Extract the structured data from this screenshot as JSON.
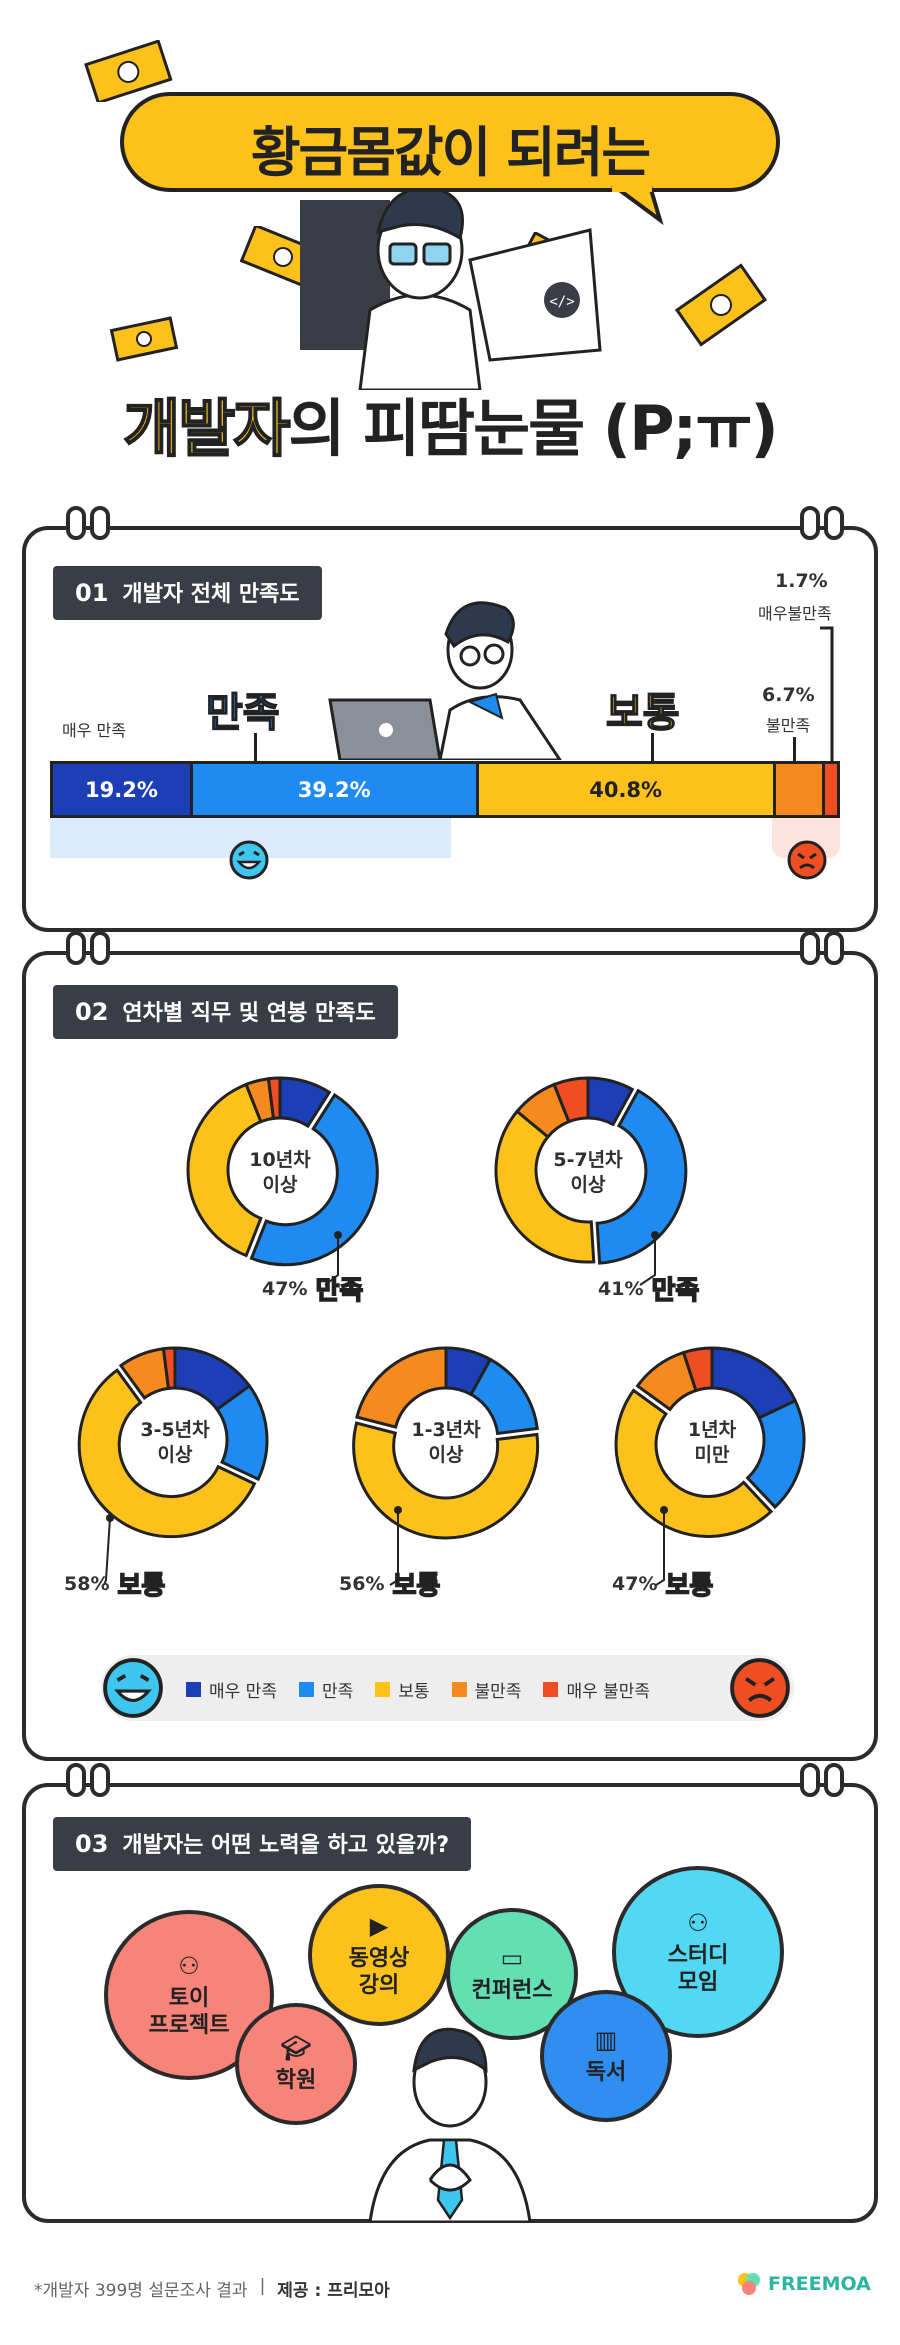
{
  "header": {
    "title_line1": "황금몸값이 되려는",
    "title_highlight": "개발자",
    "title_rest": "의 피땀눈물",
    "emoticon": "(P;ㅠ)",
    "code_icon": "</>"
  },
  "section1": {
    "num": "01",
    "title": "개발자 전체 만족도",
    "label_very_satisfied": "매우 만족",
    "label_satisfied": "만족",
    "label_normal": "보통",
    "label_dissatisfied_pct": "6.7%",
    "label_dissatisfied": "불만족",
    "label_very_dissatisfied_pct": "1.7%",
    "label_very_dissatisfied": "매우불만족",
    "bar": [
      {
        "label": "19.2%",
        "value": 19.2,
        "color": "#1c3fb5"
      },
      {
        "label": "39.2%",
        "value": 39.2,
        "color": "#1f8af0"
      },
      {
        "label": "40.8%",
        "value": 40.8,
        "color": "#fcc21b"
      },
      {
        "label": "",
        "value": 6.7,
        "color": "#f58a1f"
      },
      {
        "label": "",
        "value": 1.7,
        "color": "#ef4e23"
      }
    ]
  },
  "section2": {
    "num": "02",
    "title": "연차별 직무 및 연봉 만족도",
    "donuts": [
      {
        "label": "10년차\n이상",
        "label_l1": "10년차",
        "label_l2": "이상",
        "pct": "47%",
        "tag": "만족",
        "tag_color": "blue",
        "values": [
          9,
          47,
          38,
          4,
          2
        ]
      },
      {
        "label": "5-7년차\n이상",
        "label_l1": "5-7년차",
        "label_l2": "이상",
        "pct": "41%",
        "tag": "만족",
        "tag_color": "blue",
        "values": [
          8,
          41,
          37,
          8,
          6
        ]
      },
      {
        "label": "3-5년차\n이상",
        "label_l1": "3-5년차",
        "label_l2": "이상",
        "pct": "58%",
        "tag": "보통",
        "tag_color": "yellow",
        "values": [
          15,
          17,
          58,
          8,
          2
        ]
      },
      {
        "label": "1-3년차\n이상",
        "label_l1": "1-3년차",
        "label_l2": "이상",
        "pct": "56%",
        "tag": "보통",
        "tag_color": "yellow",
        "values": [
          8,
          15,
          56,
          21,
          0
        ]
      },
      {
        "label": "1년차\n미만",
        "label_l1": "1년차",
        "label_l2": "미만",
        "pct": "47%",
        "tag": "보통",
        "tag_color": "yellow",
        "values": [
          18,
          20,
          47,
          10,
          5
        ]
      }
    ],
    "legend": [
      {
        "label": "매우 만족",
        "color": "#1c3fb5"
      },
      {
        "label": "만족",
        "color": "#1f8af0"
      },
      {
        "label": "보통",
        "color": "#fcc21b"
      },
      {
        "label": "불만족",
        "color": "#f58a1f"
      },
      {
        "label": "매우 불만족",
        "color": "#ef4e23"
      }
    ]
  },
  "section3": {
    "num": "03",
    "title": "개발자는 어떤 노력을 하고 있을까?",
    "bubbles": {
      "toy_l1": "토이",
      "toy_l2": "프로젝트",
      "video_l1": "동영상",
      "video_l2": "강의",
      "conference": "컨퍼런스",
      "study_l1": "스터디",
      "study_l2": "모임",
      "academy": "학원",
      "reading": "독서"
    }
  },
  "footer": {
    "note": "*개발자 399명 설문조사 결과",
    "separator": "|",
    "provider": "제공 : 프리모아",
    "brand": "FREEMOA"
  },
  "colors": {
    "very_satisfied": "#1c3fb5",
    "satisfied": "#1f8af0",
    "normal": "#fcc21b",
    "dissatisfied": "#f58a1f",
    "very_dissatisfied": "#ef4e23"
  }
}
